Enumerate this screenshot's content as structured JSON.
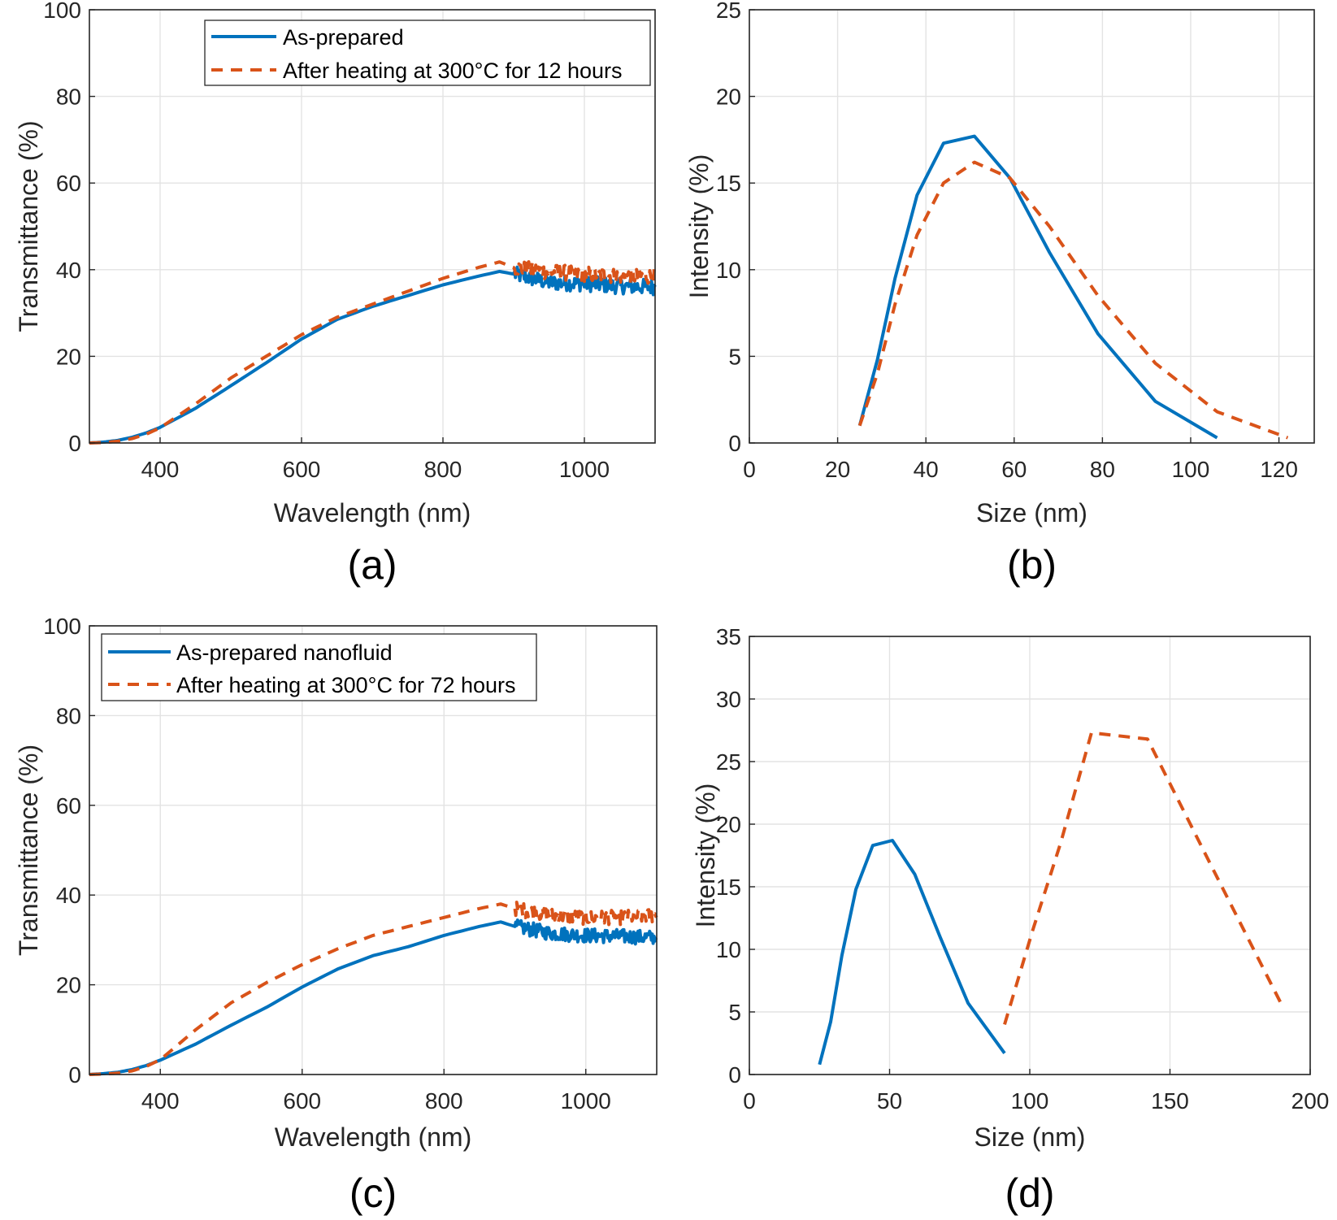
{
  "colors": {
    "series1": "#0072BD",
    "series2": "#D95319"
  },
  "chart_data": [
    {
      "id": "a",
      "type": "line",
      "panel_label": "(a)",
      "xlabel": "Wavelength (nm)",
      "ylabel": "Transmittance (%)",
      "xlim": [
        300,
        1100
      ],
      "ylim": [
        0,
        100
      ],
      "xticks": [
        400,
        600,
        800,
        1000
      ],
      "yticks": [
        0,
        20,
        40,
        60,
        80,
        100
      ],
      "grid": true,
      "legend_position": "top-center",
      "series": [
        {
          "name": "As-prepared",
          "style": "solid",
          "noise_after": 900,
          "noise_amp": 1.8,
          "x": [
            300,
            320,
            340,
            360,
            380,
            400,
            450,
            500,
            550,
            600,
            650,
            700,
            750,
            800,
            850,
            880,
            900,
            950,
            1000,
            1050,
            1100
          ],
          "y": [
            0,
            0.2,
            0.6,
            1.3,
            2.3,
            3.6,
            8.0,
            13.2,
            18.5,
            24.0,
            28.5,
            31.5,
            34.0,
            36.5,
            38.5,
            39.6,
            39.0,
            37.0,
            36.8,
            36.2,
            36.0
          ]
        },
        {
          "name": "After heating at 300°C for 12 hours",
          "style": "dashed",
          "noise_after": 900,
          "noise_amp": 1.8,
          "x": [
            300,
            320,
            340,
            360,
            380,
            400,
            450,
            500,
            550,
            600,
            650,
            700,
            750,
            800,
            850,
            880,
            900,
            950,
            1000,
            1050,
            1100
          ],
          "y": [
            0,
            0.1,
            0.4,
            1.0,
            2.0,
            3.5,
            9.0,
            15.0,
            20.0,
            25.0,
            29.0,
            32.0,
            35.0,
            38.0,
            40.5,
            41.8,
            40.5,
            39.5,
            39.0,
            38.5,
            38.5
          ]
        }
      ]
    },
    {
      "id": "b",
      "type": "line",
      "panel_label": "(b)",
      "xlabel": "Size (nm)",
      "ylabel": "Intensity (%)",
      "xlim": [
        0,
        128
      ],
      "ylim": [
        0,
        25
      ],
      "xticks": [
        0,
        20,
        40,
        60,
        80,
        100,
        120
      ],
      "yticks": [
        0,
        5,
        10,
        15,
        20,
        25
      ],
      "grid": true,
      "series": [
        {
          "name": "As-prepared",
          "style": "solid",
          "x": [
            25,
            29,
            33,
            38,
            44,
            51,
            59,
            68,
            79,
            92,
            106
          ],
          "y": [
            1.0,
            4.8,
            9.5,
            14.3,
            17.3,
            17.7,
            15.3,
            11.0,
            6.3,
            2.4,
            0.3
          ]
        },
        {
          "name": "After heating at 300°C for 12 hours",
          "style": "dashed",
          "x": [
            25,
            29,
            33,
            38,
            44,
            51,
            59,
            68,
            79,
            92,
            106,
            122
          ],
          "y": [
            1.0,
            4.0,
            8.0,
            12.0,
            15.0,
            16.2,
            15.3,
            12.5,
            8.5,
            4.6,
            1.8,
            0.3
          ]
        }
      ]
    },
    {
      "id": "c",
      "type": "line",
      "panel_label": "(c)",
      "xlabel": "Wavelength (nm)",
      "ylabel": "Transmittance (%)",
      "xlim": [
        300,
        1100
      ],
      "ylim": [
        0,
        100
      ],
      "xticks": [
        400,
        600,
        800,
        1000
      ],
      "yticks": [
        0,
        20,
        40,
        60,
        80,
        100
      ],
      "grid": true,
      "legend_position": "top-left",
      "series": [
        {
          "name": "As-prepared nanofluid",
          "style": "solid",
          "noise_after": 900,
          "noise_amp": 1.6,
          "x": [
            300,
            320,
            340,
            360,
            380,
            400,
            450,
            500,
            550,
            600,
            650,
            700,
            750,
            800,
            850,
            880,
            900,
            950,
            1000,
            1050,
            1100
          ],
          "y": [
            0,
            0.2,
            0.5,
            1.1,
            2.0,
            3.2,
            6.8,
            11.0,
            15.0,
            19.5,
            23.5,
            26.5,
            28.5,
            31.0,
            33.0,
            34.0,
            33.0,
            31.5,
            31.0,
            30.8,
            30.5
          ]
        },
        {
          "name": "After heating at 300°C for 72 hours",
          "style": "dashed",
          "noise_after": 900,
          "noise_amp": 1.6,
          "x": [
            300,
            320,
            340,
            360,
            380,
            400,
            450,
            500,
            550,
            600,
            650,
            700,
            750,
            800,
            850,
            880,
            900,
            950,
            1000,
            1050,
            1100
          ],
          "y": [
            0,
            0.1,
            0.3,
            0.8,
            1.8,
            3.3,
            10.0,
            16.0,
            20.5,
            24.5,
            28.0,
            31.0,
            33.0,
            35.0,
            37.0,
            38.0,
            37.0,
            35.5,
            35.0,
            35.0,
            35.5
          ]
        }
      ]
    },
    {
      "id": "d",
      "type": "line",
      "panel_label": "(d)",
      "xlabel": "Size (nm)",
      "ylabel": "Intensity (%)",
      "xlim": [
        0,
        200
      ],
      "ylim": [
        0,
        35
      ],
      "xticks": [
        0,
        50,
        100,
        150,
        200
      ],
      "yticks": [
        0,
        5,
        10,
        15,
        20,
        25,
        30,
        35
      ],
      "grid": true,
      "series": [
        {
          "name": "As-prepared nanofluid",
          "style": "solid",
          "x": [
            25,
            29,
            33,
            38,
            44,
            51,
            59,
            68,
            78,
            91
          ],
          "y": [
            0.8,
            4.2,
            9.5,
            14.8,
            18.3,
            18.7,
            16.0,
            11.0,
            5.7,
            1.7
          ]
        },
        {
          "name": "After heating at 300°C for 72 hours",
          "style": "dashed",
          "x": [
            91,
            101,
            111,
            122,
            142,
            164,
            190
          ],
          "y": [
            4.0,
            11.5,
            18.5,
            27.3,
            26.8,
            17.0,
            5.5
          ]
        }
      ]
    }
  ]
}
